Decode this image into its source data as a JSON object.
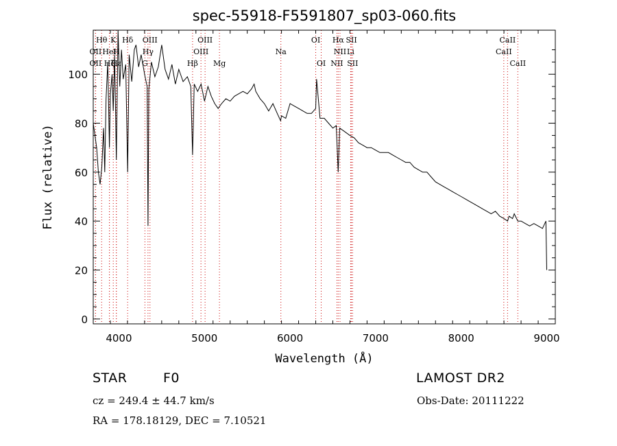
{
  "chart_data": {
    "type": "line",
    "title": "spec-55918-F5591807_sp03-060.fits",
    "xlabel": "Wavelength (Å)",
    "ylabel": "Flux (relative)",
    "xlim": [
      3700,
      9100
    ],
    "ylim": [
      -2,
      118
    ],
    "x_ticks": [
      4000,
      5000,
      6000,
      7000,
      8000,
      9000
    ],
    "y_ticks": [
      0,
      20,
      40,
      60,
      80,
      100
    ],
    "line_color": "#000000",
    "marker_color": "#cc0000",
    "series": [
      {
        "x": [
          3700,
          3720,
          3740,
          3760,
          3780,
          3800,
          3820,
          3835,
          3850,
          3870,
          3889,
          3900,
          3920,
          3934,
          3950,
          3970,
          3990,
          4010,
          4030,
          4050,
          4080,
          4102,
          4120,
          4150,
          4180,
          4200,
          4230,
          4260,
          4300,
          4330,
          4340,
          4350,
          4380,
          4420,
          4460,
          4500,
          4540,
          4580,
          4620,
          4660,
          4700,
          4750,
          4800,
          4840,
          4861,
          4880,
          4920,
          4960,
          5000,
          5040,
          5080,
          5120,
          5160,
          5200,
          5250,
          5300,
          5350,
          5400,
          5450,
          5500,
          5550,
          5580,
          5600,
          5650,
          5700,
          5750,
          5800,
          5850,
          5890,
          5900,
          5950,
          6000,
          6050,
          6100,
          6150,
          6200,
          6250,
          6300,
          6310,
          6350,
          6400,
          6450,
          6500,
          6540,
          6563,
          6580,
          6620,
          6660,
          6700,
          6750,
          6800,
          6850,
          6900,
          6950,
          7000,
          7050,
          7100,
          7150,
          7200,
          7250,
          7300,
          7350,
          7400,
          7450,
          7500,
          7550,
          7600,
          7650,
          7700,
          7750,
          7800,
          7850,
          7900,
          7950,
          8000,
          8050,
          8100,
          8150,
          8200,
          8250,
          8300,
          8350,
          8400,
          8450,
          8500,
          8542,
          8560,
          8600,
          8620,
          8662,
          8700,
          8750,
          8800,
          8850,
          8900,
          8950,
          8990,
          9000
        ],
        "y": [
          80,
          75,
          70,
          60,
          55,
          62,
          78,
          60,
          90,
          105,
          70,
          92,
          100,
          85,
          108,
          65,
          118,
          95,
          110,
          98,
          104,
          60,
          108,
          97,
          110,
          112,
          103,
          108,
          100,
          95,
          38,
          94,
          105,
          99,
          103,
          112,
          102,
          98,
          104,
          96,
          102,
          97,
          99,
          95,
          67,
          96,
          93,
          96,
          89,
          95,
          91,
          88,
          86,
          88,
          90,
          89,
          91,
          92,
          93,
          92,
          94,
          96,
          93,
          90,
          88,
          85,
          88,
          84,
          81,
          83,
          82,
          88,
          87,
          86,
          85,
          84,
          84,
          86,
          98,
          82,
          82,
          80,
          78,
          79,
          60,
          78,
          77,
          76,
          75,
          74,
          72,
          71,
          70,
          70,
          69,
          68,
          68,
          68,
          67,
          66,
          65,
          64,
          64,
          62,
          61,
          60,
          60,
          58,
          56,
          55,
          54,
          53,
          52,
          51,
          50,
          49,
          48,
          47,
          46,
          45,
          44,
          43,
          44,
          42,
          41,
          40,
          42,
          41,
          43,
          40,
          40,
          39,
          38,
          39,
          38,
          37,
          40,
          20
        ]
      }
    ],
    "line_ids": [
      {
        "name": "Hθ",
        "x": 3798,
        "row": 1
      },
      {
        "name": "K",
        "x": 3934,
        "row": 1
      },
      {
        "name": "Hδ",
        "x": 4102,
        "row": 1
      },
      {
        "name": "OIII",
        "x": 4363,
        "row": 1
      },
      {
        "name": "OIII",
        "x": 5007,
        "row": 1
      },
      {
        "name": "OI",
        "x": 6300,
        "row": 1
      },
      {
        "name": "Hα",
        "x": 6563,
        "row": 1
      },
      {
        "name": "SII",
        "x": 6717,
        "row": 1
      },
      {
        "name": "CaII",
        "x": 8542,
        "row": 1
      },
      {
        "name": "OII",
        "x": 3727,
        "row": 2
      },
      {
        "name": "HeI",
        "x": 3889,
        "row": 2
      },
      {
        "name": "H",
        "x": 3970,
        "row": 2
      },
      {
        "name": "Hγ",
        "x": 4340,
        "row": 2
      },
      {
        "name": "OIII",
        "x": 4959,
        "row": 2
      },
      {
        "name": "Na",
        "x": 5893,
        "row": 2
      },
      {
        "name": "NII",
        "x": 6584,
        "row": 2
      },
      {
        "name": "Li",
        "x": 6708,
        "row": 2
      },
      {
        "name": "CaII",
        "x": 8498,
        "row": 2
      },
      {
        "name": "OII",
        "x": 3727,
        "row": 3
      },
      {
        "name": "Hζ",
        "x": 3889,
        "row": 3
      },
      {
        "name": "Hε",
        "x": 3970,
        "row": 3
      },
      {
        "name": "G",
        "x": 4304,
        "row": 3
      },
      {
        "name": "Hβ",
        "x": 4861,
        "row": 3
      },
      {
        "name": "Mg",
        "x": 5175,
        "row": 3
      },
      {
        "name": "OI",
        "x": 6364,
        "row": 3
      },
      {
        "name": "NII",
        "x": 6548,
        "row": 3
      },
      {
        "name": "SII",
        "x": 6731,
        "row": 3
      },
      {
        "name": "CaII",
        "x": 8662,
        "row": 3
      }
    ]
  },
  "info": {
    "class": "STAR",
    "subclass": "F0",
    "survey": "LAMOST DR2",
    "cz": "cz = 249.4 ± 44.7 km/s",
    "obs_date": "Obs-Date: 20111222",
    "coords": "RA = 178.18129, DEC =   7.10521"
  }
}
